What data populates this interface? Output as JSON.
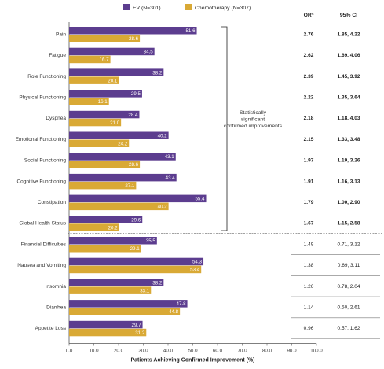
{
  "chart_data": {
    "type": "bar",
    "orientation": "horizontal",
    "categories": [
      "Pain",
      "Fatigue",
      "Role Functioning",
      "Physical Functioning",
      "Dyspnea",
      "Emotional Functioning",
      "Social Functioning",
      "Cognitive Functioning",
      "Constipation",
      "Global Health Status",
      "Financial Difficulties",
      "Nausea and Vomiting",
      "Insomnia",
      "Diarrhea",
      "Appetite Loss"
    ],
    "series": [
      {
        "name": "EV (N=301)",
        "color": "#5c3d8f",
        "values": [
          51.6,
          34.5,
          38.2,
          29.5,
          28.4,
          40.2,
          43.1,
          43.4,
          55.4,
          29.6,
          35.5,
          54.3,
          38.2,
          47.8,
          29.7
        ]
      },
      {
        "name": "Chemotherapy (N=307)",
        "color": "#d9a935",
        "values": [
          28.6,
          16.7,
          20.1,
          16.1,
          21.0,
          24.2,
          28.6,
          27.1,
          40.2,
          20.2,
          29.1,
          53.4,
          33.1,
          44.8,
          31.2
        ]
      }
    ],
    "xlabel": "Patients Achieving Confirmed Improvement (%)",
    "xlim": [
      0,
      100
    ],
    "xticks": [
      "0.0",
      "10.0",
      "20.0",
      "30.0",
      "40.0",
      "50.0",
      "60.0",
      "70.0",
      "80.0",
      "90.0",
      "100.0"
    ],
    "legend_position": "top",
    "significance_note": "Statistically significant confirmed improvements",
    "significant_count": 10,
    "stats_headers": {
      "or": "ORª",
      "ci": "95% CI"
    },
    "odds_ratios": [
      "2.76",
      "2.62",
      "2.39",
      "2.22",
      "2.18",
      "2.15",
      "1.97",
      "1.91",
      "1.79",
      "1.67",
      "1.49",
      "1.38",
      "1.26",
      "1.14",
      "0.96"
    ],
    "confidence_intervals": [
      "1.85, 4.22",
      "1.69, 4.06",
      "1.45, 3.92",
      "1.35, 3.64",
      "1.18, 4.03",
      "1.33, 3.48",
      "1.19, 3.26",
      "1.16, 3.13",
      "1.00, 2.90",
      "1.15, 2.58",
      "0.71, 3.12",
      "0.69, 3.11",
      "0.78, 2.04",
      "0.50, 2.61",
      "0.57, 1.62"
    ]
  }
}
